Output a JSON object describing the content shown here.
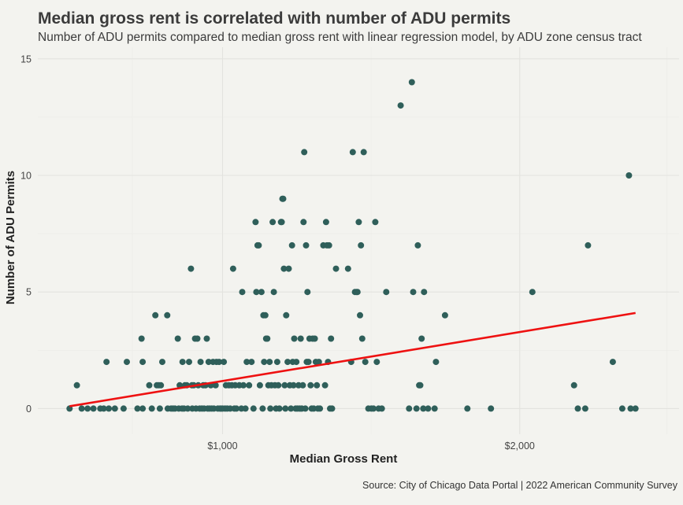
{
  "colors": {
    "background": "#f3f3ef",
    "points": "#2f5f5a",
    "regression": "#ee1111"
  },
  "chart_data": {
    "type": "scatter",
    "title": "Median gross rent is correlated with number of ADU permits",
    "subtitle": "Number of ADU permits compared to median gross rent with linear regression model, by ADU zone census tract",
    "xlabel": "Median Gross Rent",
    "ylabel": "Number of ADU Permits",
    "caption": "Source: City of Chicago Data Portal | 2022 American Community Survey",
    "x_scale": "log10",
    "xlim": [
      650,
      2900
    ],
    "ylim": [
      -1.1,
      15.5
    ],
    "x_ticks": [
      1000,
      2000
    ],
    "x_tick_labels": [
      "$1,000",
      "$2,000"
    ],
    "y_ticks": [
      0,
      5,
      10,
      15
    ],
    "y_tick_labels": [
      "0",
      "5",
      "10",
      "15"
    ],
    "grid": true,
    "legend": "none",
    "regression_line": {
      "x": [
        700,
        2620
      ],
      "y": [
        0.1,
        4.1
      ]
    },
    "points": [
      [
        700,
        0
      ],
      [
        712,
        1
      ],
      [
        720,
        0
      ],
      [
        730,
        0
      ],
      [
        740,
        0
      ],
      [
        752,
        0
      ],
      [
        758,
        0
      ],
      [
        763,
        2
      ],
      [
        767,
        0
      ],
      [
        778,
        0
      ],
      [
        794,
        0
      ],
      [
        800,
        2
      ],
      [
        820,
        0
      ],
      [
        828,
        3
      ],
      [
        830,
        2
      ],
      [
        830,
        0
      ],
      [
        843,
        1
      ],
      [
        848,
        0
      ],
      [
        855,
        4
      ],
      [
        858,
        1
      ],
      [
        862,
        1
      ],
      [
        864,
        0
      ],
      [
        866,
        1
      ],
      [
        869,
        2
      ],
      [
        879,
        4
      ],
      [
        880,
        0
      ],
      [
        887,
        0
      ],
      [
        891,
        0
      ],
      [
        895,
        0
      ],
      [
        901,
        3
      ],
      [
        903,
        0
      ],
      [
        905,
        1
      ],
      [
        910,
        0
      ],
      [
        911,
        2
      ],
      [
        914,
        0
      ],
      [
        916,
        1
      ],
      [
        920,
        1
      ],
      [
        922,
        0
      ],
      [
        925,
        2
      ],
      [
        929,
        6
      ],
      [
        931,
        1
      ],
      [
        932,
        0
      ],
      [
        935,
        1
      ],
      [
        938,
        3
      ],
      [
        940,
        0
      ],
      [
        943,
        3
      ],
      [
        945,
        1
      ],
      [
        948,
        0
      ],
      [
        950,
        2
      ],
      [
        953,
        0
      ],
      [
        956,
        1
      ],
      [
        958,
        0
      ],
      [
        961,
        1
      ],
      [
        964,
        3
      ],
      [
        966,
        0
      ],
      [
        968,
        2
      ],
      [
        970,
        0
      ],
      [
        973,
        1
      ],
      [
        975,
        0
      ],
      [
        978,
        2
      ],
      [
        980,
        0
      ],
      [
        984,
        1
      ],
      [
        986,
        2
      ],
      [
        989,
        0
      ],
      [
        992,
        2
      ],
      [
        994,
        0
      ],
      [
        997,
        0
      ],
      [
        1000,
        0
      ],
      [
        1003,
        2
      ],
      [
        1006,
        0
      ],
      [
        1008,
        1
      ],
      [
        1011,
        0
      ],
      [
        1015,
        1
      ],
      [
        1018,
        0
      ],
      [
        1022,
        1
      ],
      [
        1025,
        6
      ],
      [
        1028,
        0
      ],
      [
        1030,
        1
      ],
      [
        1033,
        0
      ],
      [
        1040,
        1
      ],
      [
        1045,
        0
      ],
      [
        1047,
        5
      ],
      [
        1050,
        1
      ],
      [
        1055,
        0
      ],
      [
        1058,
        2
      ],
      [
        1064,
        1
      ],
      [
        1070,
        2
      ],
      [
        1075,
        0
      ],
      [
        1080,
        8
      ],
      [
        1082,
        5
      ],
      [
        1085,
        7
      ],
      [
        1088,
        7
      ],
      [
        1091,
        1
      ],
      [
        1095,
        5
      ],
      [
        1098,
        0
      ],
      [
        1100,
        4
      ],
      [
        1102,
        2
      ],
      [
        1105,
        4
      ],
      [
        1107,
        3
      ],
      [
        1110,
        3
      ],
      [
        1113,
        1
      ],
      [
        1116,
        2
      ],
      [
        1118,
        0
      ],
      [
        1121,
        1
      ],
      [
        1124,
        8
      ],
      [
        1127,
        5
      ],
      [
        1130,
        1
      ],
      [
        1133,
        0
      ],
      [
        1136,
        2
      ],
      [
        1139,
        1
      ],
      [
        1142,
        0
      ],
      [
        1146,
        8
      ],
      [
        1148,
        8
      ],
      [
        1150,
        9
      ],
      [
        1152,
        9
      ],
      [
        1154,
        6
      ],
      [
        1156,
        1
      ],
      [
        1158,
        0
      ],
      [
        1160,
        4
      ],
      [
        1164,
        2
      ],
      [
        1167,
        6
      ],
      [
        1170,
        1
      ],
      [
        1173,
        0
      ],
      [
        1176,
        7
      ],
      [
        1178,
        2
      ],
      [
        1180,
        1
      ],
      [
        1182,
        3
      ],
      [
        1186,
        0
      ],
      [
        1188,
        2
      ],
      [
        1191,
        0
      ],
      [
        1194,
        1
      ],
      [
        1197,
        0
      ],
      [
        1200,
        3
      ],
      [
        1203,
        0
      ],
      [
        1206,
        1
      ],
      [
        1208,
        8
      ],
      [
        1210,
        11
      ],
      [
        1213,
        0
      ],
      [
        1215,
        7
      ],
      [
        1217,
        2
      ],
      [
        1219,
        5
      ],
      [
        1222,
        2
      ],
      [
        1225,
        3
      ],
      [
        1228,
        1
      ],
      [
        1231,
        0
      ],
      [
        1234,
        3
      ],
      [
        1237,
        0
      ],
      [
        1240,
        3
      ],
      [
        1243,
        2
      ],
      [
        1246,
        1
      ],
      [
        1249,
        0
      ],
      [
        1252,
        2
      ],
      [
        1255,
        0
      ],
      [
        1265,
        7
      ],
      [
        1270,
        1
      ],
      [
        1273,
        8
      ],
      [
        1276,
        7
      ],
      [
        1279,
        2
      ],
      [
        1282,
        7
      ],
      [
        1285,
        0
      ],
      [
        1288,
        3
      ],
      [
        1291,
        0
      ],
      [
        1303,
        6
      ],
      [
        1340,
        6
      ],
      [
        1350,
        2
      ],
      [
        1355,
        11
      ],
      [
        1362,
        5
      ],
      [
        1367,
        5
      ],
      [
        1370,
        5
      ],
      [
        1374,
        8
      ],
      [
        1378,
        4
      ],
      [
        1381,
        7
      ],
      [
        1385,
        3
      ],
      [
        1390,
        11
      ],
      [
        1395,
        2
      ],
      [
        1405,
        0
      ],
      [
        1415,
        0
      ],
      [
        1422,
        0
      ],
      [
        1428,
        8
      ],
      [
        1433,
        2
      ],
      [
        1439,
        0
      ],
      [
        1450,
        0
      ],
      [
        1465,
        5
      ],
      [
        1515,
        13
      ],
      [
        1545,
        0
      ],
      [
        1555,
        14
      ],
      [
        1560,
        5
      ],
      [
        1572,
        0
      ],
      [
        1577,
        7
      ],
      [
        1582,
        1
      ],
      [
        1586,
        1
      ],
      [
        1591,
        3
      ],
      [
        1597,
        0
      ],
      [
        1600,
        5
      ],
      [
        1615,
        0
      ],
      [
        1640,
        0
      ],
      [
        1645,
        2
      ],
      [
        1680,
        4
      ],
      [
        1770,
        0
      ],
      [
        1870,
        0
      ],
      [
        2060,
        5
      ],
      [
        2270,
        1
      ],
      [
        2290,
        0
      ],
      [
        2330,
        0
      ],
      [
        2345,
        7
      ],
      [
        2485,
        2
      ],
      [
        2540,
        0
      ],
      [
        2580,
        10
      ],
      [
        2590,
        0
      ],
      [
        2620,
        0
      ]
    ]
  }
}
